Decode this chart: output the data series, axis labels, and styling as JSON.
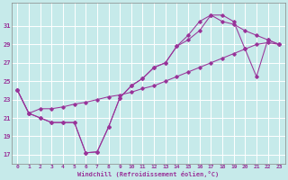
{
  "background_color": "#c6eaea",
  "grid_color": "#ffffff",
  "line_color": "#993399",
  "xlabel": "Windchill (Refroidissement éolien,°C)",
  "hours": [
    0,
    1,
    2,
    3,
    4,
    5,
    6,
    7,
    8,
    9,
    10,
    11,
    12,
    13,
    14,
    15,
    16,
    17,
    18,
    19,
    20,
    21,
    22,
    23
  ],
  "series1": [
    24.0,
    21.5,
    21.0,
    20.5,
    20.5,
    20.5,
    17.2,
    17.3,
    20.0,
    23.2,
    24.5,
    25.3,
    26.5,
    27.0,
    28.8,
    30.0,
    31.5,
    32.2,
    31.5,
    31.2,
    30.5,
    30.0,
    29.5,
    29.0
  ],
  "series2": [
    24.0,
    21.5,
    21.0,
    20.5,
    20.5,
    20.5,
    17.2,
    17.3,
    20.0,
    23.2,
    24.5,
    25.3,
    26.5,
    27.0,
    28.8,
    29.5,
    30.5,
    32.2,
    32.2,
    31.5,
    28.5,
    25.5,
    29.5,
    29.0
  ],
  "series3": [
    24.0,
    21.5,
    22.0,
    22.0,
    22.2,
    22.5,
    22.7,
    23.0,
    23.3,
    23.5,
    23.8,
    24.2,
    24.5,
    25.0,
    25.5,
    26.0,
    26.5,
    27.0,
    27.5,
    28.0,
    28.5,
    29.0,
    29.2,
    29.0
  ],
  "ylim": [
    16.0,
    33.5
  ],
  "xlim": [
    -0.5,
    23.5
  ],
  "yticks": [
    17,
    19,
    21,
    23,
    25,
    27,
    29,
    31
  ],
  "xticks": [
    0,
    1,
    2,
    3,
    4,
    5,
    6,
    7,
    8,
    9,
    10,
    11,
    12,
    13,
    14,
    15,
    16,
    17,
    18,
    19,
    20,
    21,
    22,
    23
  ]
}
